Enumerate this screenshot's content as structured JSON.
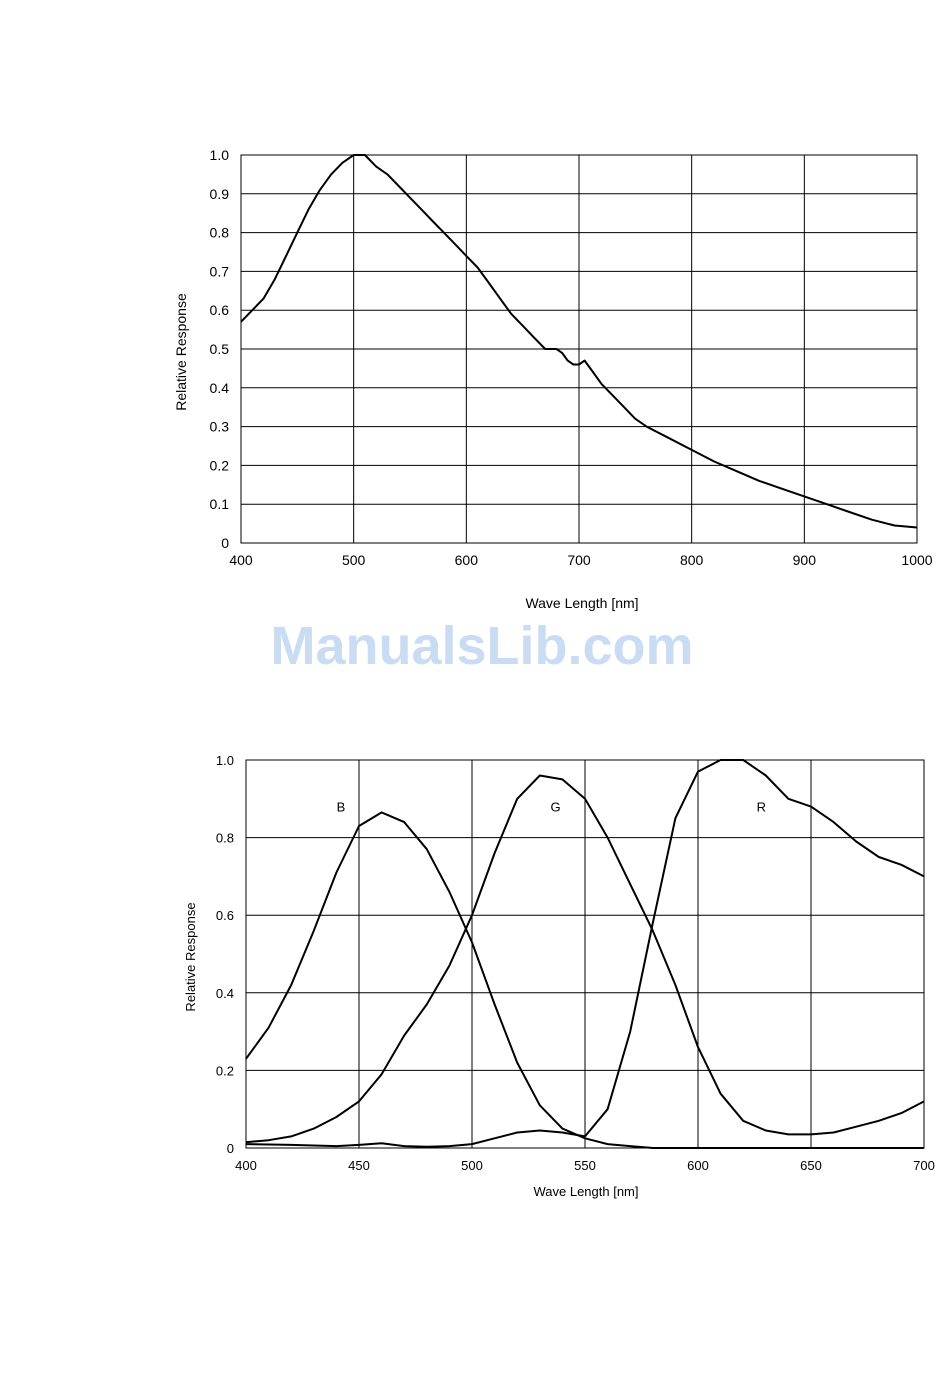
{
  "watermark": "ManualsLib.com",
  "chart_data": [
    {
      "type": "line",
      "title": "",
      "xlabel": "Wave Length [nm]",
      "ylabel": "Relative Response",
      "xlim": [
        400,
        1000
      ],
      "ylim": [
        0,
        1.0
      ],
      "x_ticks": [
        "400",
        "500",
        "600",
        "700",
        "800",
        "900",
        "1000"
      ],
      "y_ticks": [
        "0",
        "0.1",
        "0.2",
        "0.3",
        "0.4",
        "0.5",
        "0.6",
        "0.7",
        "0.8",
        "0.9",
        "1.0"
      ],
      "grid": true,
      "series": [
        {
          "x": [
            400,
            410,
            420,
            430,
            440,
            450,
            460,
            470,
            480,
            490,
            500,
            510,
            520,
            530,
            540,
            550,
            560,
            570,
            580,
            590,
            600,
            610,
            620,
            630,
            640,
            650,
            660,
            670,
            675,
            680,
            685,
            690,
            695,
            700,
            705,
            710,
            720,
            730,
            740,
            750,
            760,
            780,
            800,
            820,
            840,
            860,
            880,
            900,
            920,
            940,
            960,
            980,
            1000
          ],
          "y": [
            0.57,
            0.6,
            0.63,
            0.68,
            0.74,
            0.8,
            0.86,
            0.91,
            0.95,
            0.98,
            1.0,
            1.0,
            0.97,
            0.95,
            0.92,
            0.89,
            0.86,
            0.83,
            0.8,
            0.77,
            0.74,
            0.71,
            0.67,
            0.63,
            0.59,
            0.56,
            0.53,
            0.5,
            0.5,
            0.5,
            0.49,
            0.47,
            0.46,
            0.46,
            0.47,
            0.45,
            0.41,
            0.38,
            0.35,
            0.32,
            0.3,
            0.27,
            0.24,
            0.21,
            0.185,
            0.16,
            0.14,
            0.12,
            0.1,
            0.08,
            0.06,
            0.045,
            0.04
          ]
        }
      ]
    },
    {
      "type": "line",
      "title": "",
      "xlabel": "Wave Length [nm]",
      "ylabel": "Relative Response",
      "xlim": [
        400,
        700
      ],
      "ylim": [
        0,
        1.0
      ],
      "x_ticks": [
        "400",
        "450",
        "500",
        "550",
        "600",
        "650",
        "700"
      ],
      "y_ticks": [
        "0",
        "0.2",
        "0.4",
        "0.6",
        "0.8",
        "1.0"
      ],
      "grid": true,
      "series": [
        {
          "name": "B",
          "label_pos": [
            442,
            0.88
          ],
          "x": [
            400,
            410,
            420,
            430,
            440,
            450,
            460,
            470,
            480,
            490,
            500,
            510,
            520,
            530,
            540,
            550,
            560,
            570,
            580,
            590,
            600,
            610,
            620,
            630,
            640,
            650,
            660,
            670,
            680,
            690,
            700
          ],
          "y": [
            0.23,
            0.31,
            0.42,
            0.56,
            0.71,
            0.83,
            0.865,
            0.84,
            0.77,
            0.66,
            0.53,
            0.37,
            0.22,
            0.11,
            0.05,
            0.025,
            0.01,
            0.005,
            0.0,
            0.0,
            0.0,
            0.0,
            0.0,
            0.0,
            0.0,
            0.0,
            0.0,
            0.0,
            0.0,
            0.0,
            0.0
          ]
        },
        {
          "name": "G",
          "label_pos": [
            537,
            0.88
          ],
          "x": [
            400,
            410,
            420,
            430,
            440,
            450,
            460,
            470,
            480,
            490,
            500,
            510,
            520,
            530,
            540,
            550,
            560,
            570,
            580,
            590,
            600,
            610,
            620,
            630,
            640,
            650,
            660,
            670,
            680,
            690,
            700
          ],
          "y": [
            0.015,
            0.02,
            0.03,
            0.05,
            0.08,
            0.12,
            0.19,
            0.29,
            0.37,
            0.47,
            0.6,
            0.76,
            0.9,
            0.96,
            0.95,
            0.9,
            0.8,
            0.68,
            0.56,
            0.42,
            0.26,
            0.14,
            0.07,
            0.045,
            0.035,
            0.035,
            0.04,
            0.055,
            0.07,
            0.09,
            0.12
          ]
        },
        {
          "name": "R",
          "label_pos": [
            628,
            0.88
          ],
          "x": [
            400,
            420,
            440,
            450,
            460,
            470,
            480,
            490,
            500,
            510,
            520,
            530,
            540,
            550,
            560,
            570,
            580,
            590,
            600,
            610,
            620,
            630,
            640,
            650,
            660,
            670,
            680,
            690,
            700
          ],
          "y": [
            0.01,
            0.008,
            0.005,
            0.008,
            0.012,
            0.005,
            0.003,
            0.005,
            0.01,
            0.025,
            0.04,
            0.045,
            0.04,
            0.03,
            0.1,
            0.3,
            0.58,
            0.85,
            0.97,
            1.0,
            1.0,
            0.96,
            0.9,
            0.88,
            0.84,
            0.79,
            0.75,
            0.73,
            0.7
          ]
        }
      ]
    }
  ]
}
